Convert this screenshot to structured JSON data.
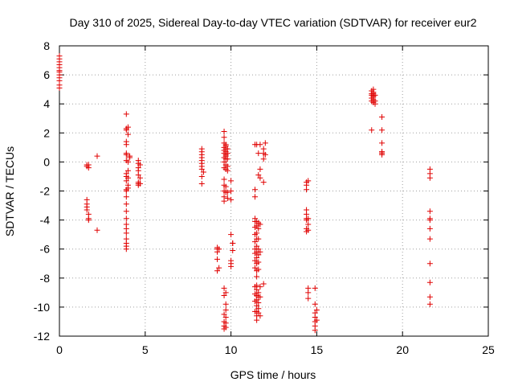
{
  "chart_data": {
    "type": "scatter",
    "title": "Day 310 of 2025, Sidereal Day-to-day VTEC variation (SDTVAR) for receiver eur2",
    "xlabel": "GPS time / hours",
    "ylabel": "SDTVAR / TECUs",
    "xlim": [
      0,
      25
    ],
    "ylim": [
      -12,
      8
    ],
    "xticks": [
      0,
      5,
      10,
      15,
      20,
      25
    ],
    "yticks": [
      -12,
      -10,
      -8,
      -6,
      -4,
      -2,
      0,
      2,
      4,
      6,
      8
    ],
    "grid": true,
    "marker": "+",
    "colors": {
      "marker": "#e00000",
      "grid": "#a0a0a0",
      "axis": "#000000"
    },
    "series": [
      {
        "name": "SDTVAR",
        "x": [
          0.0,
          0.0,
          0.0,
          0.0,
          0.0,
          0.0,
          0.0,
          0.0,
          0.0,
          0.0,
          0.0,
          0.0,
          1.6,
          1.6,
          1.7,
          1.7,
          1.6,
          1.6,
          1.6,
          1.6,
          1.7,
          1.7,
          1.7,
          2.2,
          2.2,
          3.9,
          3.9,
          3.9,
          3.9,
          3.9,
          3.9,
          3.9,
          3.9,
          3.9,
          3.9,
          3.9,
          3.9,
          3.9,
          3.9,
          3.9,
          3.9,
          3.9,
          3.9,
          3.9,
          3.9,
          3.9,
          3.9,
          3.9,
          3.9,
          4.0,
          4.0,
          4.1,
          4.0,
          4.0,
          4.0,
          4.0,
          4.0,
          4.1,
          4.6,
          4.6,
          4.6,
          4.6,
          4.6,
          4.7,
          4.6,
          4.6,
          4.6,
          4.7,
          4.7,
          8.3,
          8.3,
          8.3,
          8.3,
          8.3,
          8.3,
          8.3,
          8.3,
          8.4,
          8.3,
          8.3,
          9.2,
          9.2,
          9.2,
          9.3,
          9.2,
          9.3,
          9.2,
          9.6,
          9.6,
          9.6,
          9.6,
          9.6,
          9.6,
          9.6,
          9.6,
          9.6,
          9.6,
          9.6,
          9.6,
          9.6,
          9.6,
          9.6,
          9.6,
          9.6,
          9.6,
          9.6,
          9.6,
          9.7,
          9.7,
          9.7,
          9.7,
          9.7,
          9.7,
          9.7,
          9.7,
          9.7,
          9.7,
          9.7,
          9.7,
          9.7,
          9.7,
          9.7,
          9.7,
          9.7,
          9.8,
          9.8,
          9.8,
          9.8,
          9.8,
          9.8,
          9.8,
          10.0,
          10.0,
          10.0,
          10.0,
          10.1,
          10.1,
          10.0,
          10.0,
          10.0,
          10.1,
          11.4,
          11.4,
          11.4,
          11.4,
          11.4,
          11.4,
          11.4,
          11.4,
          11.4,
          11.4,
          11.4,
          11.4,
          11.4,
          11.4,
          11.4,
          11.4,
          11.5,
          11.5,
          11.5,
          11.5,
          11.5,
          11.5,
          11.5,
          11.5,
          11.5,
          11.5,
          11.5,
          11.5,
          11.5,
          11.5,
          11.5,
          11.5,
          11.5,
          11.5,
          11.5,
          11.6,
          11.6,
          11.6,
          11.6,
          11.6,
          11.6,
          11.6,
          11.6,
          11.6,
          11.6,
          11.6,
          11.6,
          11.6,
          11.6,
          11.7,
          11.7,
          11.7,
          11.7,
          11.7,
          11.7,
          11.7,
          11.7,
          11.9,
          11.9,
          11.9,
          11.9,
          11.9,
          12.0,
          12.0,
          14.4,
          14.4,
          14.4,
          14.4,
          14.4,
          14.4,
          14.4,
          14.4,
          14.4,
          14.5,
          14.5,
          14.5,
          14.5,
          14.5,
          14.5,
          14.5,
          14.9,
          14.9,
          14.9,
          14.9,
          14.9,
          14.9,
          14.9,
          15.0,
          15.0,
          18.2,
          18.2,
          18.2,
          18.2,
          18.2,
          18.2,
          18.3,
          18.3,
          18.3,
          18.3,
          18.3,
          18.3,
          18.3,
          18.3,
          18.4,
          18.4,
          18.4,
          18.3,
          18.8,
          18.8,
          18.8,
          18.8,
          18.8,
          18.8,
          18.8,
          21.6,
          21.6,
          21.6,
          21.6,
          21.6,
          21.6,
          21.6,
          21.6,
          21.6,
          21.6,
          21.6,
          21.6
        ],
        "y": [
          7.3,
          7.1,
          6.9,
          6.7,
          6.5,
          6.3,
          6.2,
          6.0,
          5.8,
          5.6,
          5.3,
          5.1,
          -0.2,
          -0.3,
          -0.4,
          -0.2,
          -2.6,
          -2.9,
          -3.1,
          -3.3,
          -3.6,
          -3.9,
          -4.0,
          0.4,
          -4.7,
          3.3,
          2.3,
          2.2,
          1.4,
          1.2,
          0.6,
          0.1,
          -0.8,
          -1.0,
          -1.3,
          -1.9,
          -2.0,
          -2.4,
          -2.9,
          -3.4,
          -3.9,
          -4.3,
          -4.6,
          -4.9,
          -5.3,
          -5.6,
          -5.8,
          -6.0,
          0.5,
          2.4,
          1.9,
          0.4,
          0.0,
          -0.6,
          -1.1,
          -1.6,
          -1.8,
          0.3,
          0.1,
          -0.1,
          -0.4,
          -0.6,
          -0.9,
          -1.1,
          -1.4,
          -1.5,
          -1.6,
          -1.5,
          -0.2,
          0.9,
          0.7,
          0.5,
          0.3,
          0.1,
          -0.1,
          -0.3,
          -0.5,
          -0.7,
          -1.0,
          -1.5,
          -5.9,
          -6.0,
          -6.2,
          -6.0,
          -6.7,
          -7.3,
          -7.5,
          2.1,
          1.7,
          1.3,
          1.0,
          0.8,
          0.6,
          0.3,
          0.0,
          -0.4,
          -1.2,
          -1.6,
          -2.0,
          -2.4,
          -2.7,
          -8.7,
          -9.2,
          -10.5,
          -11.0,
          -11.3,
          -11.5,
          1.2,
          1.1,
          0.9,
          0.7,
          0.5,
          0.4,
          0.2,
          -0.2,
          -0.5,
          -1.7,
          -2.1,
          -9.0,
          -9.8,
          -10.2,
          -10.7,
          -11.1,
          -11.4,
          0.9,
          0.6,
          0.2,
          -0.3,
          -0.6,
          -2.1,
          -2.5,
          -1.3,
          -2.0,
          -2.6,
          -5.0,
          -5.6,
          -6.1,
          -7.0,
          -7.2,
          -6.8,
          -5.6,
          1.2,
          -1.9,
          -2.4,
          -3.9,
          -4.1,
          -4.5,
          -5.0,
          -5.5,
          -6.0,
          -6.3,
          -6.8,
          -7.3,
          -8.6,
          -9.1,
          -9.6,
          -10.3,
          1.2,
          -4.1,
          -4.4,
          -4.9,
          -5.3,
          -5.8,
          -6.2,
          -6.6,
          -7.0,
          -7.5,
          -7.9,
          -8.5,
          -8.8,
          -9.2,
          -9.5,
          -9.9,
          -10.3,
          -10.6,
          -10.9,
          0.6,
          -0.9,
          -4.2,
          -4.6,
          -5.3,
          -6.0,
          -6.4,
          -6.9,
          -7.4,
          -9.0,
          -9.3,
          -9.7,
          -10.1,
          -10.4,
          1.2,
          -0.5,
          -1.1,
          -4.3,
          -6.2,
          -8.6,
          -9.3,
          -10.6,
          0.9,
          0.6,
          0.2,
          -1.4,
          -8.4,
          1.3,
          0.5,
          -1.4,
          -1.6,
          -1.9,
          -3.3,
          -3.6,
          -3.9,
          -4.0,
          -4.6,
          -4.8,
          -1.3,
          -3.9,
          -4.3,
          -4.7,
          -8.7,
          -9.0,
          -9.4,
          -8.7,
          -9.8,
          -10.4,
          -10.7,
          -11.0,
          -11.3,
          -11.6,
          -10.2,
          -10.9,
          4.9,
          4.7,
          4.6,
          4.4,
          4.2,
          2.2,
          4.8,
          4.6,
          4.5,
          4.3,
          4.2,
          4.1,
          4.7,
          4.5,
          4.6,
          4.2,
          4.0,
          5.0,
          3.1,
          2.2,
          1.3,
          0.7,
          0.6,
          0.5,
          0.7,
          -0.5,
          -0.8,
          -1.1,
          -3.4,
          -3.9,
          -4.6,
          -5.3,
          -7.0,
          -8.3,
          -9.3,
          -9.8,
          -4.0
        ]
      }
    ]
  }
}
